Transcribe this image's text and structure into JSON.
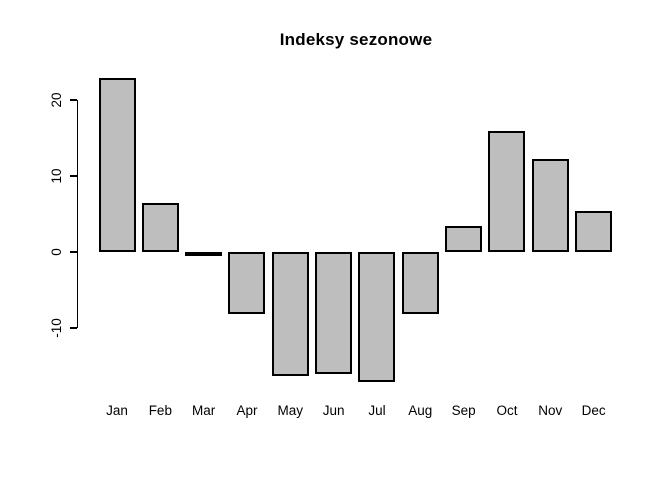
{
  "chart_data": {
    "type": "bar",
    "title": "Indeksy sezonowe",
    "categories": [
      "Jan",
      "Feb",
      "Mar",
      "Apr",
      "May",
      "Jun",
      "Jul",
      "Aug",
      "Sep",
      "Oct",
      "Nov",
      "Dec"
    ],
    "values": [
      22.9,
      6.4,
      -0.5,
      -8.2,
      -16.3,
      -16.1,
      -17.1,
      -8.1,
      3.4,
      15.9,
      12.2,
      5.4
    ],
    "yticks": [
      -10,
      0,
      10,
      20
    ],
    "ylim": [
      -17.5,
      23
    ],
    "xlabel": "",
    "ylabel": "",
    "grid": false,
    "legend": null,
    "bar_fill_color": "#bebebe",
    "bar_border_color": "#000000",
    "axis_color": "#000000",
    "text_color": "#000000",
    "background_color": "#ffffff"
  }
}
